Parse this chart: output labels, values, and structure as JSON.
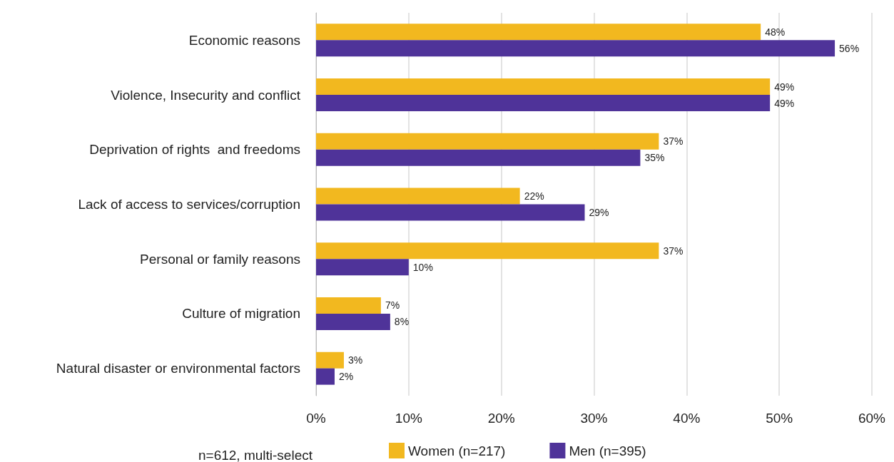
{
  "chart_data": {
    "type": "bar",
    "orientation": "horizontal",
    "categories": [
      "Economic reasons",
      "Violence, Insecurity and conflict",
      "Deprivation of rights  and freedoms",
      "Lack of access to services/corruption",
      "Personal or family reasons",
      "Culture of migration",
      "Natural disaster or environmental factors"
    ],
    "series": [
      {
        "name": "Women (n=217)",
        "color": "#f2b81f",
        "values": [
          48,
          49,
          37,
          22,
          37,
          7,
          3
        ],
        "value_labels": [
          "48%",
          "49%",
          "37%",
          "22%",
          "37%",
          "7%",
          "3%"
        ]
      },
      {
        "name": "Men (n=395)",
        "color": "#4f3399",
        "values": [
          56,
          49,
          35,
          29,
          10,
          8,
          2
        ],
        "value_labels": [
          "56%",
          "49%",
          "35%",
          "29%",
          "10%",
          "8%",
          "2%"
        ]
      }
    ],
    "xlim": [
      0,
      60
    ],
    "xticks": [
      {
        "value": 0,
        "label": "0%"
      },
      {
        "value": 10,
        "label": "10%"
      },
      {
        "value": 20,
        "label": "20%"
      },
      {
        "value": 30,
        "label": "30%"
      },
      {
        "value": 40,
        "label": "40%"
      },
      {
        "value": 50,
        "label": "50%"
      },
      {
        "value": 60,
        "label": "60%"
      }
    ],
    "grid": "x",
    "legend": "bottom",
    "annotations": [
      "n=612, multi-select"
    ]
  }
}
